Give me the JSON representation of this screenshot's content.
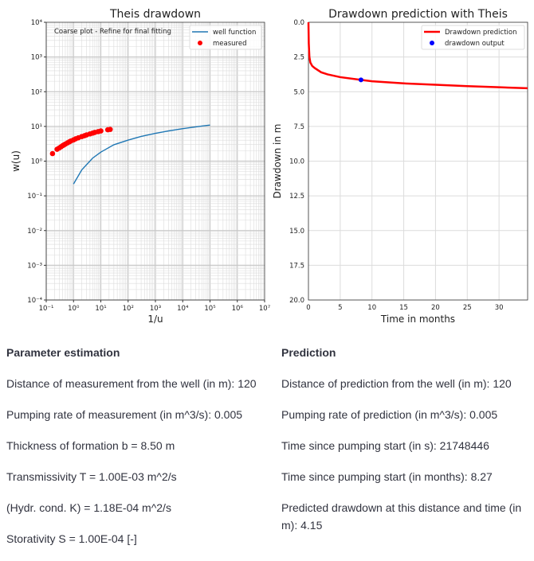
{
  "chart_data": [
    {
      "type": "scatter",
      "title": "Theis drawdown",
      "xlabel": "1/u",
      "ylabel": "w(u)",
      "xscale": "log",
      "yscale": "log",
      "xlim": [
        0.1,
        10000000
      ],
      "ylim": [
        0.0001,
        10000
      ],
      "xticks": [
        "10⁻¹",
        "10⁰",
        "10¹",
        "10²",
        "10³",
        "10⁴",
        "10⁵",
        "10⁶",
        "10⁷"
      ],
      "yticks": [
        "10⁻⁴",
        "10⁻³",
        "10⁻²",
        "10⁻¹",
        "10⁰",
        "10¹",
        "10²",
        "10³",
        "10⁴"
      ],
      "grid": true,
      "annotation": "Coarse plot - Refine for final fitting",
      "legend_position": "top-right",
      "series": [
        {
          "name": "well function",
          "kind": "line",
          "color": "#1f77b4",
          "x": [
            1,
            2,
            5,
            10,
            30,
            100,
            300,
            1000,
            3000,
            10000,
            30000,
            100000
          ],
          "y": [
            0.219,
            0.56,
            1.22,
            1.82,
            2.96,
            4.04,
            5.14,
            6.33,
            7.43,
            8.63,
            9.73,
            10.94
          ]
        },
        {
          "name": "measured",
          "kind": "scatter",
          "color": "#ff0000",
          "x": [
            0.17,
            0.25,
            0.3,
            0.35,
            0.4,
            0.45,
            0.5,
            0.6,
            0.7,
            0.8,
            1.0,
            1.2,
            1.5,
            2,
            2.5,
            3,
            4,
            5,
            6,
            8,
            10,
            18,
            22
          ],
          "y": [
            1.65,
            2.2,
            2.4,
            2.6,
            2.8,
            2.95,
            3.1,
            3.35,
            3.6,
            3.8,
            4.1,
            4.4,
            4.7,
            5.1,
            5.4,
            5.7,
            6.1,
            6.4,
            6.7,
            7.1,
            7.4,
            8.0,
            8.2
          ]
        }
      ]
    },
    {
      "type": "line",
      "title": "Drawdown prediction with Theis",
      "xlabel": "Time in months",
      "ylabel": "Drawdown in m",
      "xlim": [
        0,
        34.5
      ],
      "ylim": [
        20,
        0
      ],
      "y_inverted": true,
      "xticks": [
        "0",
        "5",
        "10",
        "15",
        "20",
        "25",
        "30"
      ],
      "yticks": [
        "0.0",
        "2.5",
        "5.0",
        "7.5",
        "10.0",
        "12.5",
        "15.0",
        "17.5",
        "20.0"
      ],
      "grid": true,
      "legend_position": "top-right",
      "series": [
        {
          "name": "Drawdown prediction",
          "kind": "line",
          "color": "#ff0000",
          "x": [
            0,
            0.05,
            0.15,
            0.3,
            0.6,
            1,
            2,
            3,
            5,
            8.27,
            10,
            15,
            20,
            25,
            30,
            34.5
          ],
          "y": [
            0,
            1.5,
            2.5,
            2.9,
            3.15,
            3.3,
            3.6,
            3.75,
            3.95,
            4.15,
            4.25,
            4.4,
            4.5,
            4.6,
            4.68,
            4.75
          ]
        },
        {
          "name": "drawdown output",
          "kind": "scatter",
          "color": "#0000ff",
          "x": [
            8.27
          ],
          "y": [
            4.15
          ]
        }
      ]
    }
  ],
  "parameters": {
    "heading": "Parameter estimation",
    "lines": [
      "Distance of measurement from the well (in m): 120",
      "Pumping rate of measurement (in m^3/s): 0.005",
      "Thickness of formation b = 8.50 m",
      "Transmissivity T = 1.00E-03 m^2/s",
      "(Hydr. cond. K) = 1.18E-04 m^2/s",
      "Storativity S = 1.00E-04 [-]"
    ]
  },
  "prediction": {
    "heading": "Prediction",
    "lines": [
      "Distance of prediction from the well (in m): 120",
      "Pumping rate of prediction (in m^3/s): 0.005",
      "Time since pumping start (in s): 21748446",
      "Time since pumping start (in months): 8.27",
      "Predicted drawdown at this distance and time (in m): 4.15"
    ]
  }
}
